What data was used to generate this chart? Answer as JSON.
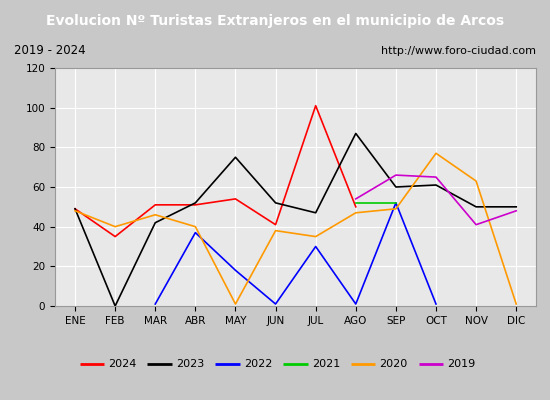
{
  "title": "Evolucion Nº Turistas Extranjeros en el municipio de Arcos",
  "subtitle_left": "2019 - 2024",
  "subtitle_right": "http://www.foro-ciudad.com",
  "months": [
    "ENE",
    "FEB",
    "MAR",
    "ABR",
    "MAY",
    "JUN",
    "JUL",
    "AGO",
    "SEP",
    "OCT",
    "NOV",
    "DIC"
  ],
  "series": {
    "2024": {
      "color": "#ff0000",
      "values": [
        49,
        35,
        51,
        51,
        54,
        41,
        101,
        50,
        null,
        null,
        null,
        null
      ]
    },
    "2023": {
      "color": "#000000",
      "values": [
        49,
        0,
        42,
        52,
        75,
        52,
        47,
        87,
        60,
        61,
        50,
        50
      ]
    },
    "2022": {
      "color": "#0000ff",
      "values": [
        null,
        null,
        1,
        37,
        18,
        1,
        30,
        1,
        52,
        1,
        null,
        null
      ]
    },
    "2021": {
      "color": "#00cc00",
      "values": [
        null,
        null,
        null,
        null,
        null,
        null,
        null,
        52,
        52,
        null,
        null,
        null
      ]
    },
    "2020": {
      "color": "#ff9900",
      "values": [
        48,
        40,
        46,
        40,
        1,
        38,
        35,
        47,
        49,
        77,
        63,
        1
      ]
    },
    "2019": {
      "color": "#cc00cc",
      "values": [
        null,
        null,
        null,
        null,
        null,
        null,
        null,
        54,
        66,
        65,
        41,
        48
      ]
    }
  },
  "legend_entries": [
    [
      "2024",
      "#ff0000"
    ],
    [
      "2023",
      "#000000"
    ],
    [
      "2022",
      "#0000ff"
    ],
    [
      "2021",
      "#00cc00"
    ],
    [
      "2020",
      "#ff9900"
    ],
    [
      "2019",
      "#cc00cc"
    ]
  ],
  "ylim": [
    0,
    120
  ],
  "yticks": [
    0,
    20,
    40,
    60,
    80,
    100,
    120
  ],
  "title_bgcolor": "#4472c4",
  "title_fgcolor": "#ffffff",
  "subtitle_bgcolor": "#d4d4d4",
  "plot_bgcolor": "#e8e8e8",
  "grid_color": "#ffffff",
  "title_fontsize": 10,
  "subtitle_fontsize": 8.5,
  "tick_fontsize": 7.5,
  "legend_fontsize": 8
}
